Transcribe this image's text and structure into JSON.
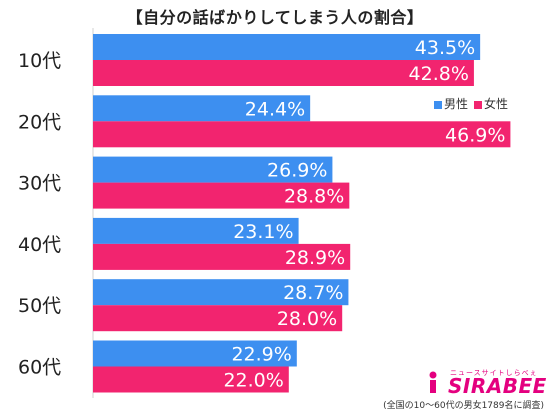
{
  "title": "【自分の話ばかりしてしまう人の割合】",
  "legend": {
    "male": "男性",
    "female": "女性"
  },
  "logo": {
    "sub": "ニュースサイトしらべぇ",
    "main": "SIRABEE"
  },
  "footnote": "(全国の10〜60代の男女1789名に調査)",
  "colors": {
    "male": "#3d8ff0",
    "female": "#f2246f"
  },
  "chart_data": {
    "type": "bar",
    "orientation": "horizontal",
    "categories": [
      "10代",
      "20代",
      "30代",
      "40代",
      "50代",
      "60代"
    ],
    "series": [
      {
        "name": "男性",
        "values": [
          43.5,
          24.4,
          26.9,
          23.1,
          28.7,
          22.9
        ],
        "labels": [
          "43.5%",
          "24.4%",
          "26.9%",
          "23.1%",
          "28.7%",
          "22.9%"
        ]
      },
      {
        "name": "女性",
        "values": [
          42.8,
          46.9,
          28.8,
          28.9,
          28.0,
          22.0
        ],
        "labels": [
          "42.8%",
          "46.9%",
          "28.8%",
          "28.9%",
          "28.0%",
          "22.0%"
        ]
      }
    ],
    "title": "【自分の話ばかりしてしまう人の割合】",
    "xlim": [
      0,
      50
    ],
    "grid": false,
    "legend_position": "top-right"
  }
}
